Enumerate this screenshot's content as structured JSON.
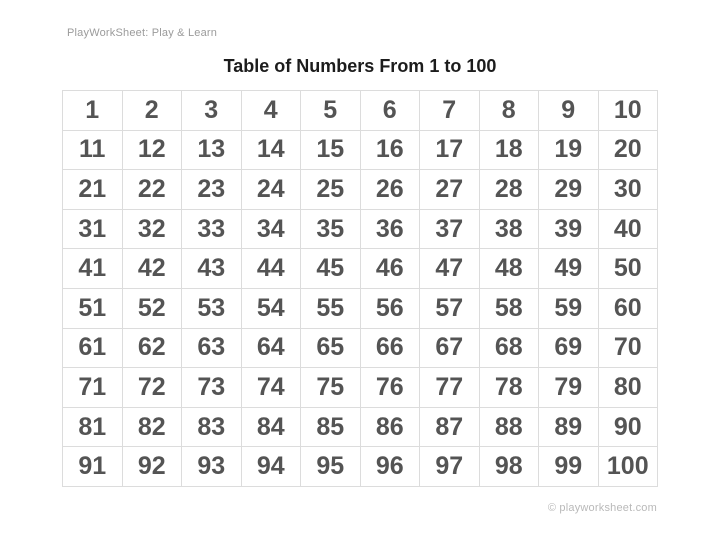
{
  "page": {
    "brand": "PlayWorkSheet: Play & Learn",
    "title": "Table of Numbers From 1 to 100",
    "footer": "© playworksheet.com"
  },
  "table": {
    "rows": [
      [
        1,
        2,
        3,
        4,
        5,
        6,
        7,
        8,
        9,
        10
      ],
      [
        11,
        12,
        13,
        14,
        15,
        16,
        17,
        18,
        19,
        20
      ],
      [
        21,
        22,
        23,
        24,
        25,
        26,
        27,
        28,
        29,
        30
      ],
      [
        31,
        32,
        33,
        34,
        35,
        36,
        37,
        38,
        39,
        40
      ],
      [
        41,
        42,
        43,
        44,
        45,
        46,
        47,
        48,
        49,
        50
      ],
      [
        51,
        52,
        53,
        54,
        55,
        56,
        57,
        58,
        59,
        60
      ],
      [
        61,
        62,
        63,
        64,
        65,
        66,
        67,
        68,
        69,
        70
      ],
      [
        71,
        72,
        73,
        74,
        75,
        76,
        77,
        78,
        79,
        80
      ],
      [
        81,
        82,
        83,
        84,
        85,
        86,
        87,
        88,
        89,
        90
      ],
      [
        91,
        92,
        93,
        94,
        95,
        96,
        97,
        98,
        99,
        100
      ]
    ]
  },
  "colors": {
    "background": "#ffffff",
    "brand_text": "#9b9b9b",
    "title_text": "#1c1c1c",
    "number_text": "#545454",
    "table_border": "#dcdcdc",
    "footer_text": "#b9b9b9"
  }
}
